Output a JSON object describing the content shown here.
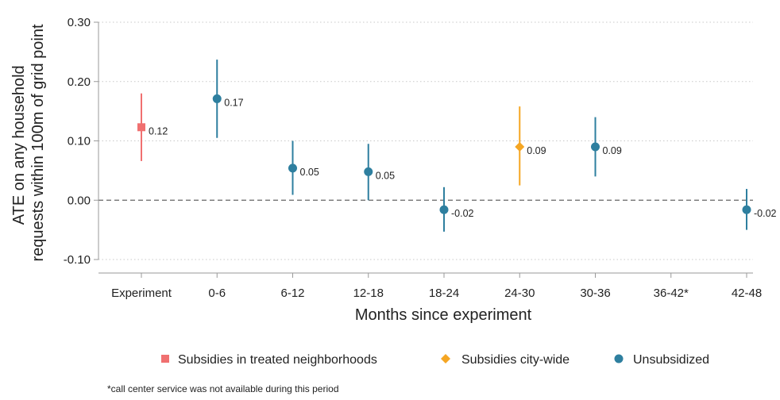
{
  "chart_data": {
    "type": "scatter",
    "xlabel": "Months since experiment",
    "ylabel_lines": [
      "ATE on any household",
      "requests within 100m of grid point"
    ],
    "categories": [
      "Experiment",
      "0-6",
      "6-12",
      "12-18",
      "18-24",
      "24-30",
      "30-36",
      "36-42*",
      "42-48"
    ],
    "ylim": [
      -0.1,
      0.3
    ],
    "yticks": [
      -0.1,
      0.0,
      0.1,
      0.2,
      0.3
    ],
    "ytick_labels": [
      "-0.10",
      "0.00",
      "0.10",
      "0.20",
      "0.30"
    ],
    "grid": "horizontal dotted",
    "reference_line": 0.0,
    "legend_position": "bottom",
    "series": [
      {
        "name": "Subsidies in treated neighborhoods",
        "color": "#f07070",
        "marker": "square",
        "points": [
          {
            "category": "Experiment",
            "value": 0.123,
            "low": 0.066,
            "high": 0.18,
            "label": "0.12"
          }
        ]
      },
      {
        "name": "Subsidies city-wide",
        "color": "#f5a623",
        "marker": "diamond",
        "points": [
          {
            "category": "24-30",
            "value": 0.09,
            "low": 0.025,
            "high": 0.158,
            "label": "0.09"
          }
        ]
      },
      {
        "name": "Unsubsidized",
        "color": "#2e7f9f",
        "marker": "circle",
        "points": [
          {
            "category": "0-6",
            "value": 0.171,
            "low": 0.105,
            "high": 0.237,
            "label": "0.17"
          },
          {
            "category": "6-12",
            "value": 0.054,
            "low": 0.009,
            "high": 0.1,
            "label": "0.05"
          },
          {
            "category": "12-18",
            "value": 0.048,
            "low": 0.0,
            "high": 0.095,
            "label": "0.05"
          },
          {
            "category": "18-24",
            "value": -0.016,
            "low": -0.053,
            "high": 0.022,
            "label": "-0.02"
          },
          {
            "category": "30-36",
            "value": 0.09,
            "low": 0.04,
            "high": 0.14,
            "label": "0.09"
          },
          {
            "category": "42-48",
            "value": -0.016,
            "low": -0.05,
            "high": 0.019,
            "label": "-0.02"
          }
        ]
      }
    ],
    "footnote": "*call center service was not available during this period"
  }
}
